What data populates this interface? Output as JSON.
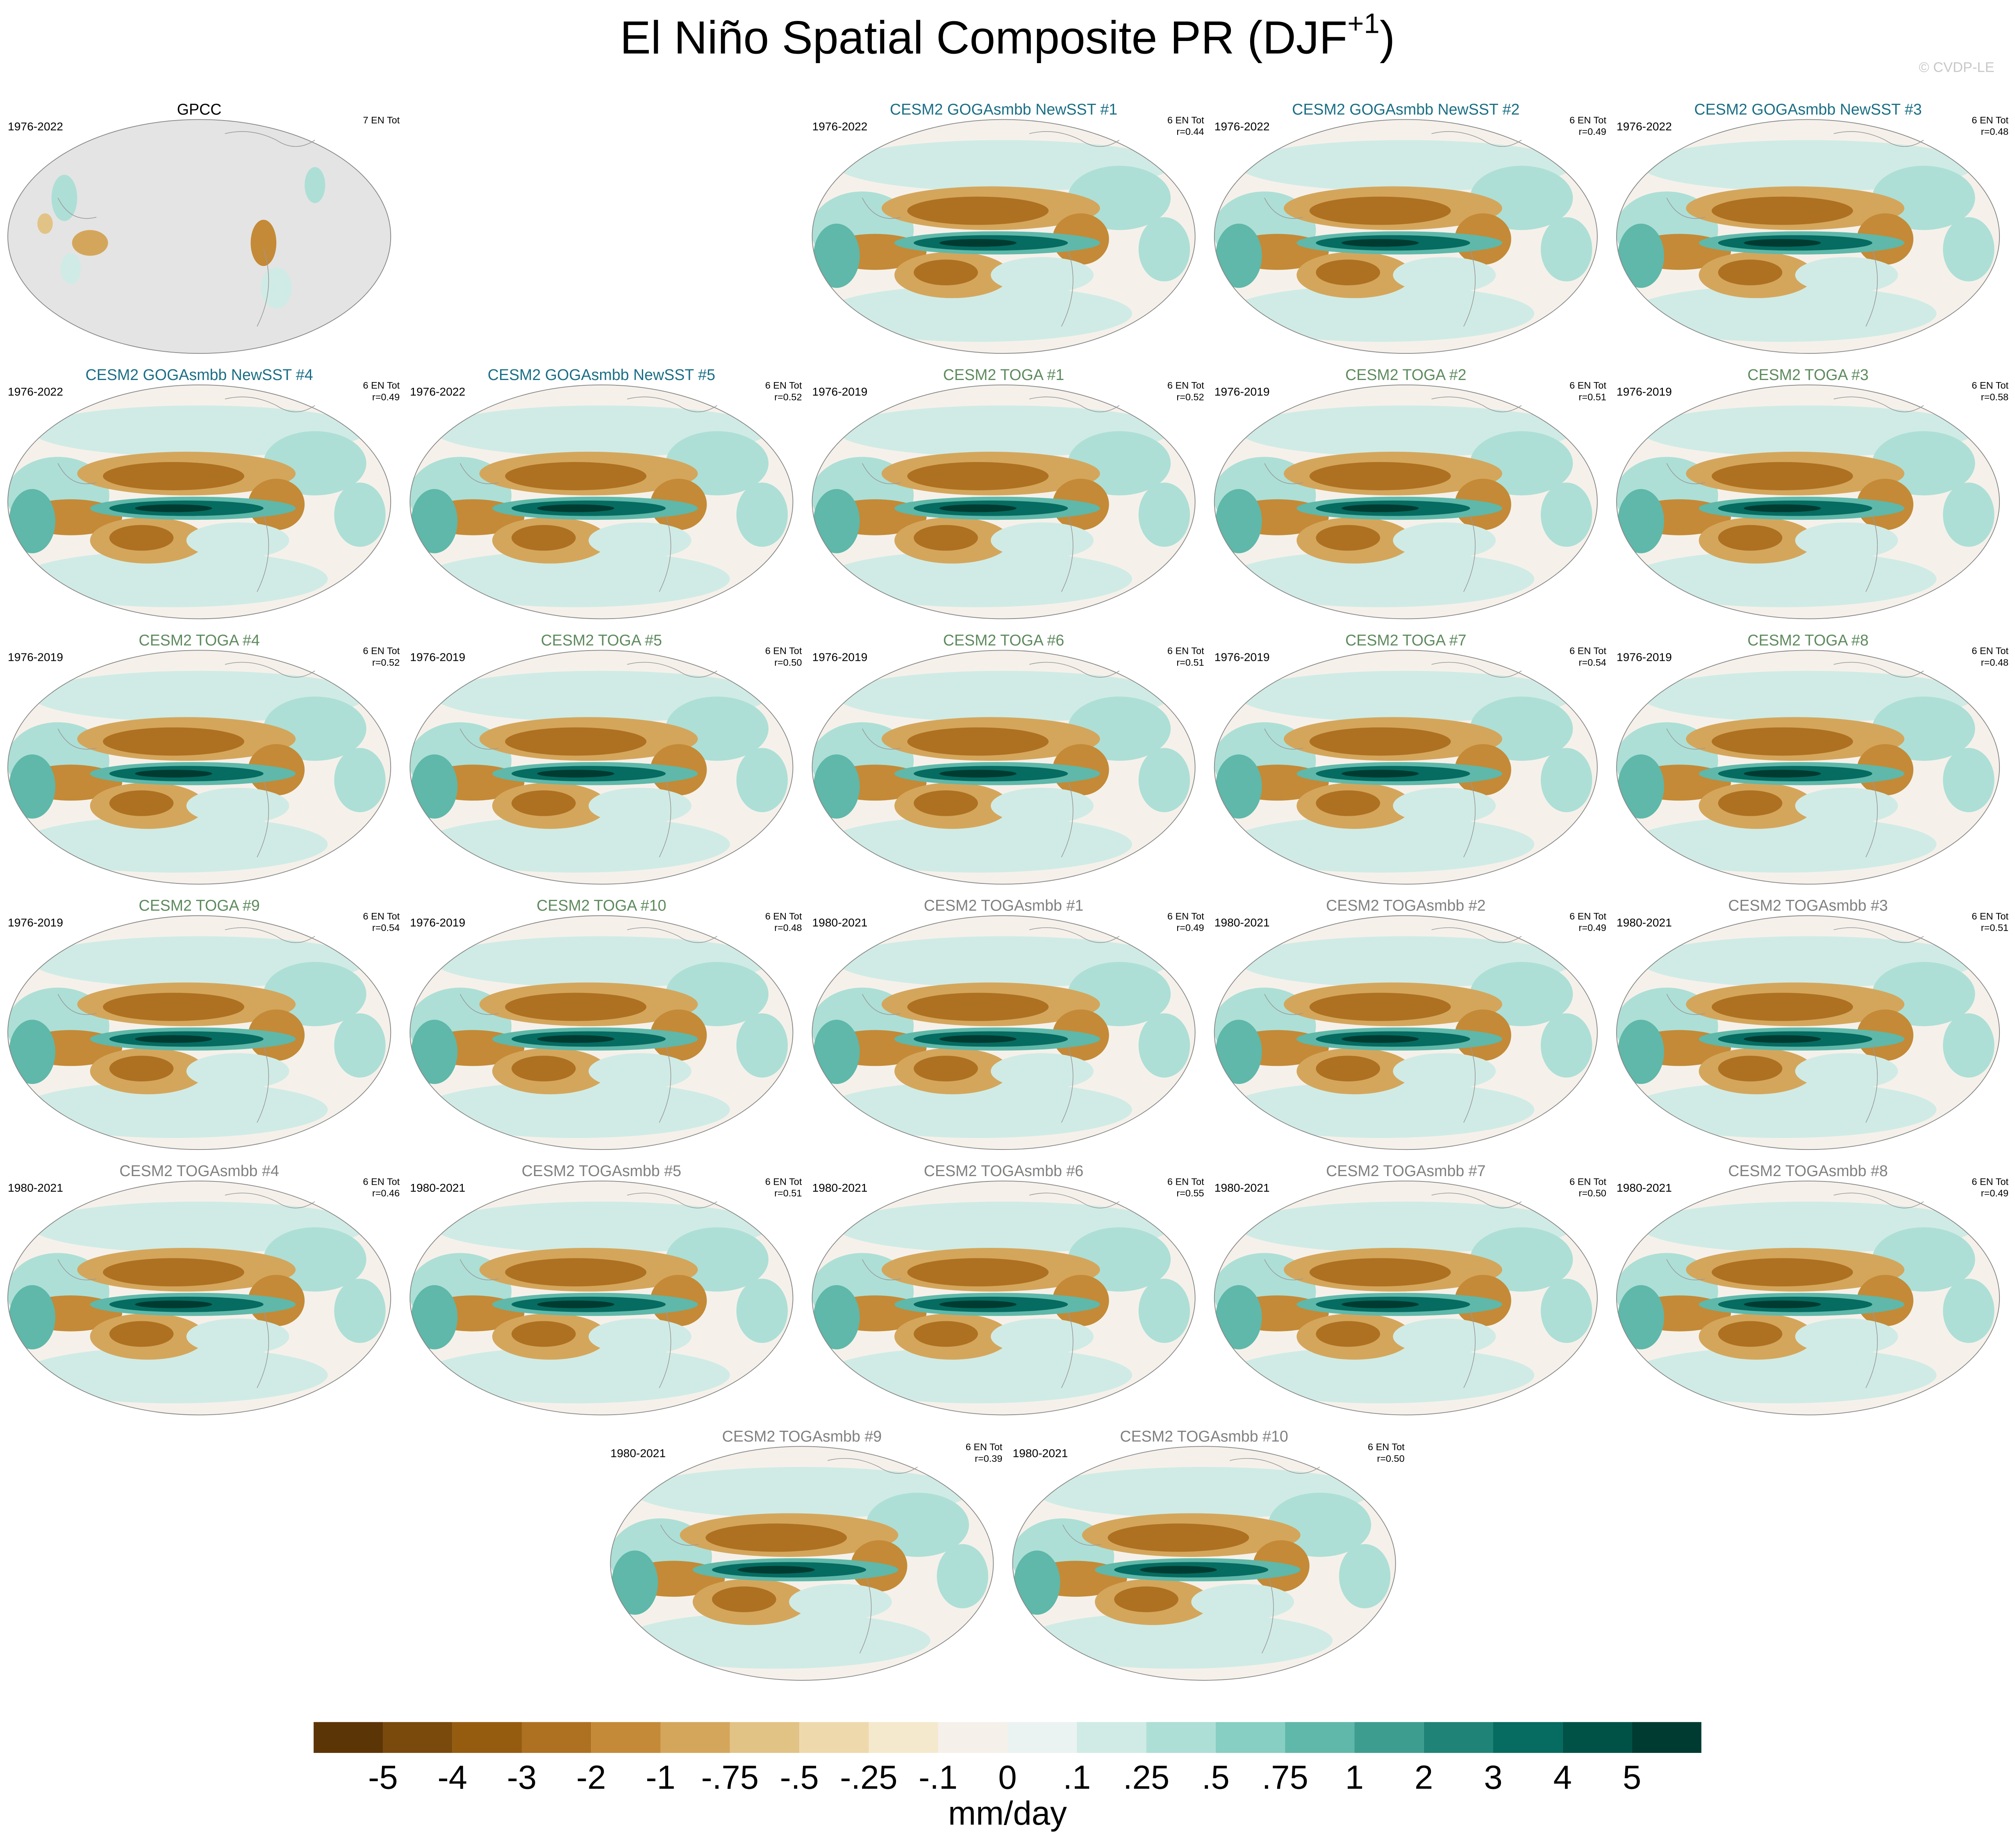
{
  "header": {
    "title": "El Niño Spatial Composite PR (DJF",
    "title_superscript": "+1",
    "title_end": ")",
    "credit": "© CVDP-LE"
  },
  "panels": [
    {
      "title": "GPCC",
      "years": "1976-2022",
      "count": "7 EN Tot",
      "color": "#000000",
      "observed": true
    },
    {
      "title": "CESM2 GOGAsmbb NewSST #1",
      "years": "1976-2022",
      "count": "6 EN Tot",
      "r": "r=0.44",
      "color": "#1a6e85"
    },
    {
      "title": "CESM2 GOGAsmbb NewSST #2",
      "years": "1976-2022",
      "count": "6 EN Tot",
      "r": "r=0.49",
      "color": "#1a6e85"
    },
    {
      "title": "CESM2 GOGAsmbb NewSST #3",
      "years": "1976-2022",
      "count": "6 EN Tot",
      "r": "r=0.48",
      "color": "#1a6e85"
    },
    {
      "title": "CESM2 GOGAsmbb NewSST #4",
      "years": "1976-2022",
      "count": "6 EN Tot",
      "r": "r=0.49",
      "color": "#1a6e85"
    },
    {
      "title": "CESM2 GOGAsmbb NewSST #5",
      "years": "1976-2022",
      "count": "6 EN Tot",
      "r": "r=0.52",
      "color": "#1a6e85"
    },
    {
      "title": "CESM2 TOGA #1",
      "years": "1976-2019",
      "count": "6 EN Tot",
      "r": "r=0.52",
      "color": "#5e8a5e"
    },
    {
      "title": "CESM2 TOGA #2",
      "years": "1976-2019",
      "count": "6 EN Tot",
      "r": "r=0.51",
      "color": "#5e8a5e"
    },
    {
      "title": "CESM2 TOGA #3",
      "years": "1976-2019",
      "count": "6 EN Tot",
      "r": "r=0.58",
      "color": "#5e8a5e"
    },
    {
      "title": "CESM2 TOGA #4",
      "years": "1976-2019",
      "count": "6 EN Tot",
      "r": "r=0.52",
      "color": "#5e8a5e"
    },
    {
      "title": "CESM2 TOGA #5",
      "years": "1976-2019",
      "count": "6 EN Tot",
      "r": "r=0.50",
      "color": "#5e8a5e"
    },
    {
      "title": "CESM2 TOGA #6",
      "years": "1976-2019",
      "count": "6 EN Tot",
      "r": "r=0.51",
      "color": "#5e8a5e"
    },
    {
      "title": "CESM2 TOGA #7",
      "years": "1976-2019",
      "count": "6 EN Tot",
      "r": "r=0.54",
      "color": "#5e8a5e"
    },
    {
      "title": "CESM2 TOGA #8",
      "years": "1976-2019",
      "count": "6 EN Tot",
      "r": "r=0.48",
      "color": "#5e8a5e"
    },
    {
      "title": "CESM2 TOGA #9",
      "years": "1976-2019",
      "count": "6 EN Tot",
      "r": "r=0.54",
      "color": "#5e8a5e"
    },
    {
      "title": "CESM2 TOGA #10",
      "years": "1976-2019",
      "count": "6 EN Tot",
      "r": "r=0.48",
      "color": "#5e8a5e"
    },
    {
      "title": "CESM2 TOGAsmbb #1",
      "years": "1980-2021",
      "count": "6 EN Tot",
      "r": "r=0.49",
      "color": "#808080"
    },
    {
      "title": "CESM2 TOGAsmbb #2",
      "years": "1980-2021",
      "count": "6 EN Tot",
      "r": "r=0.49",
      "color": "#808080"
    },
    {
      "title": "CESM2 TOGAsmbb #3",
      "years": "1980-2021",
      "count": "6 EN Tot",
      "r": "r=0.51",
      "color": "#808080"
    },
    {
      "title": "CESM2 TOGAsmbb #4",
      "years": "1980-2021",
      "count": "6 EN Tot",
      "r": "r=0.46",
      "color": "#808080"
    },
    {
      "title": "CESM2 TOGAsmbb #5",
      "years": "1980-2021",
      "count": "6 EN Tot",
      "r": "r=0.51",
      "color": "#808080"
    },
    {
      "title": "CESM2 TOGAsmbb #6",
      "years": "1980-2021",
      "count": "6 EN Tot",
      "r": "r=0.55",
      "color": "#808080"
    },
    {
      "title": "CESM2 TOGAsmbb #7",
      "years": "1980-2021",
      "count": "6 EN Tot",
      "r": "r=0.50",
      "color": "#808080"
    },
    {
      "title": "CESM2 TOGAsmbb #8",
      "years": "1980-2021",
      "count": "6 EN Tot",
      "r": "r=0.49",
      "color": "#808080"
    },
    {
      "title": "CESM2 TOGAsmbb #9",
      "years": "1980-2021",
      "count": "6 EN Tot",
      "r": "r=0.39",
      "color": "#808080"
    },
    {
      "title": "CESM2 TOGAsmbb #10",
      "years": "1980-2021",
      "count": "6 EN Tot",
      "r": "r=0.50",
      "color": "#808080"
    }
  ],
  "colorbar": {
    "colors": [
      "#5c3507",
      "#7a4a0c",
      "#955c10",
      "#ae7121",
      "#c48a37",
      "#d4a65c",
      "#e2c386",
      "#eed9ad",
      "#f5e9cd",
      "#f5f1ea",
      "#eaf3f1",
      "#d0ebe5",
      "#addfd6",
      "#86cfc2",
      "#5fb8a9",
      "#3d9e8f",
      "#1f8377",
      "#066b60",
      "#005247",
      "#003b31"
    ],
    "levels": [
      -5,
      -4,
      -3,
      -2,
      -1,
      {
        "value": -0.75,
        "label": "-.75"
      },
      {
        "value": -0.5,
        "label": "-.5"
      },
      {
        "value": -0.25,
        "label": "-.25"
      },
      {
        "value": -0.1,
        "label": "-.1"
      },
      0,
      {
        "value": 0.1,
        "label": ".1"
      },
      {
        "value": 0.25,
        "label": ".25"
      },
      {
        "value": 0.5,
        "label": ".5"
      },
      {
        "value": 0.75,
        "label": ".75"
      },
      1,
      2,
      3,
      4,
      5
    ],
    "unit": "mm/day"
  }
}
